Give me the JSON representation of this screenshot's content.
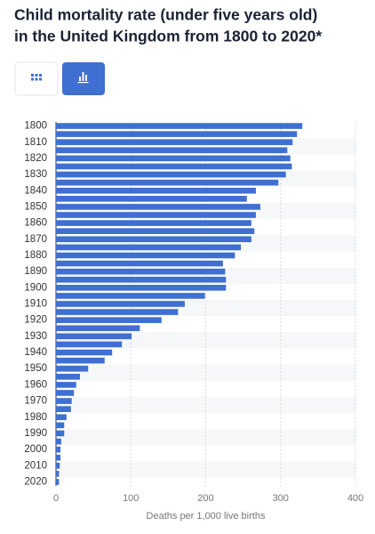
{
  "chart_data": {
    "type": "hbar",
    "title": [
      "Child mortality rate (under five years old)",
      "in the United Kingdom from 1800 to 2020*"
    ],
    "categories": [
      "1800",
      null,
      "1810",
      null,
      "1820",
      null,
      "1830",
      null,
      "1840",
      null,
      "1850",
      null,
      "1860",
      null,
      "1870",
      null,
      "1880",
      null,
      "1890",
      null,
      "1900",
      null,
      "1910",
      null,
      "1920",
      null,
      "1930",
      null,
      "1940",
      null,
      "1950",
      null,
      "1960",
      null,
      "1970",
      null,
      "1980",
      null,
      "1990",
      null,
      "2000",
      null,
      "2010",
      null,
      "2020"
    ],
    "values": [
      329,
      322,
      316,
      309,
      313,
      315,
      307,
      297,
      267,
      255,
      273,
      267,
      261,
      265,
      261,
      247,
      239,
      223,
      226,
      227,
      227,
      199,
      172,
      163,
      141,
      112,
      101,
      88,
      75,
      65,
      43,
      32,
      27,
      24,
      21,
      20,
      14,
      11,
      11,
      7,
      6,
      6,
      5,
      4,
      4
    ],
    "color": "#3f6fd1",
    "xlim": [
      0,
      400
    ],
    "xticks": [
      0,
      100,
      200,
      300,
      400
    ],
    "x_label": "Deaths per 1,000 live births",
    "grid": true
  }
}
